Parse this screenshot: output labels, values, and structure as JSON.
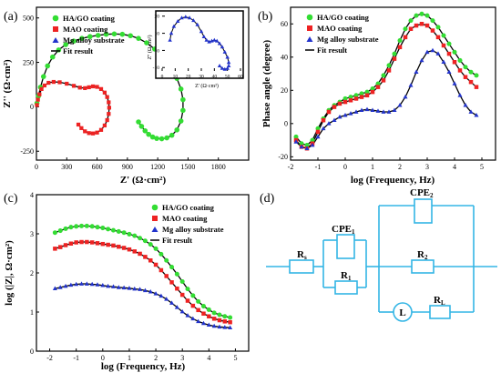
{
  "colors": {
    "hago": "#33dd33",
    "mao": "#ee2222",
    "mg": "#2233cc",
    "fit": "#000000",
    "circuit": "#33b5e5"
  },
  "legend": {
    "hago": "HA/GO coating",
    "mao": "MAO coating",
    "mg": "Mg alloy substrate",
    "fit": "Fit result"
  },
  "chart_data": [
    {
      "panel": "(a)",
      "type": "scatter",
      "xlabel": "Z' (Ω·cm²)",
      "ylabel": "Z'' (Ω·cm²)",
      "xlim": [
        0,
        2100
      ],
      "ylim": [
        -300,
        560
      ],
      "xticks": [
        0,
        300,
        600,
        900,
        1200,
        1500,
        1800
      ],
      "yticks": [
        -250,
        0,
        250,
        500
      ],
      "legend_position": "top-left",
      "series": [
        {
          "name": "HA/GO coating",
          "x": [
            5,
            20,
            40,
            70,
            110,
            160,
            220,
            290,
            370,
            450,
            530,
            610,
            690,
            770,
            850,
            930,
            1010,
            1090,
            1170,
            1250,
            1330,
            1390,
            1430,
            1450,
            1450,
            1430,
            1390,
            1340,
            1290,
            1240,
            1190,
            1150,
            1110,
            1075,
            1040,
            1010
          ],
          "y": [
            20,
            60,
            110,
            170,
            230,
            280,
            320,
            350,
            370,
            385,
            395,
            402,
            408,
            410,
            408,
            400,
            385,
            360,
            325,
            280,
            220,
            160,
            100,
            40,
            -20,
            -80,
            -130,
            -160,
            -175,
            -180,
            -178,
            -170,
            -155,
            -135,
            -110,
            -85
          ]
        },
        {
          "name": "MAO coating",
          "x": [
            5,
            15,
            30,
            50,
            80,
            120,
            170,
            230,
            300,
            370,
            430,
            480,
            520,
            560,
            600,
            640,
            675,
            700,
            715,
            720,
            715,
            700,
            675,
            640,
            600,
            560,
            520,
            480,
            445,
            415
          ],
          "y": [
            10,
            40,
            70,
            100,
            120,
            135,
            140,
            138,
            130,
            118,
            108,
            105,
            110,
            115,
            112,
            100,
            80,
            55,
            25,
            -5,
            -40,
            -75,
            -105,
            -130,
            -145,
            -150,
            -148,
            -138,
            -120,
            -100
          ]
        },
        {
          "name": "Fit result",
          "inset_note": "Mg alloy substrate shown in inset"
        }
      ],
      "inset": {
        "xlabel": "Z' (Ω·cm²)",
        "ylabel": "Z'' (Ω·cm²)",
        "xlim": [
          0,
          60
        ],
        "ylim": [
          -12,
          22
        ],
        "xticks": [
          0,
          10,
          20,
          30,
          40,
          50,
          60
        ],
        "yticks": [
          -10,
          0,
          10,
          20
        ],
        "series": [
          {
            "name": "Mg alloy substrate",
            "x": [
              6,
              7,
              9,
              12,
              15,
              18,
              21,
              24,
              27,
              30,
              32,
              34,
              36,
              38,
              40,
              42,
              44,
              46,
              48,
              50,
              51,
              51,
              50,
              48,
              46,
              44
            ],
            "y": [
              6,
              10,
              14,
              17,
              19,
              19.5,
              19,
              17.5,
              15,
              11,
              8,
              6,
              5,
              5.5,
              6,
              5.5,
              4,
              2,
              -1,
              -4,
              -7,
              -9,
              -10.5,
              -11,
              -10.5,
              -9
            ]
          }
        ]
      }
    },
    {
      "panel": "(b)",
      "type": "scatter",
      "xlabel": "log (Frequency, Hz)",
      "ylabel": "Phase angle (degree)",
      "xlim": [
        -2,
        5.5
      ],
      "ylim": [
        -22,
        70
      ],
      "xticks": [
        -2,
        -1,
        0,
        1,
        2,
        3,
        4,
        5
      ],
      "yticks": [
        -20,
        0,
        20,
        40,
        60
      ],
      "legend_position": "top-left",
      "x": [
        -1.8,
        -1.6,
        -1.4,
        -1.2,
        -1.0,
        -0.8,
        -0.6,
        -0.4,
        -0.2,
        0.0,
        0.2,
        0.4,
        0.6,
        0.8,
        1.0,
        1.2,
        1.4,
        1.6,
        1.8,
        2.0,
        2.2,
        2.4,
        2.6,
        2.8,
        3.0,
        3.2,
        3.4,
        3.6,
        3.8,
        4.0,
        4.2,
        4.4,
        4.6,
        4.8
      ],
      "series": [
        {
          "name": "HA/GO coating",
          "y": [
            -8,
            -12,
            -13,
            -10,
            -3,
            3,
            8,
            11,
            13,
            15,
            16,
            17,
            18,
            19,
            21,
            24,
            29,
            35,
            42,
            50,
            57,
            62,
            65,
            66,
            65,
            62,
            58,
            53,
            48,
            43,
            38,
            34,
            31,
            29
          ]
        },
        {
          "name": "MAO coating",
          "y": [
            -10,
            -14,
            -15,
            -12,
            -5,
            2,
            7,
            10,
            12,
            13,
            14,
            15,
            16,
            17,
            19,
            22,
            26,
            32,
            39,
            46,
            52,
            57,
            59,
            60,
            59,
            56,
            52,
            47,
            42,
            37,
            32,
            28,
            25,
            22
          ]
        },
        {
          "name": "Mg alloy substrate",
          "y": [
            -11,
            -14,
            -15,
            -13,
            -8,
            -3,
            0,
            2,
            4,
            5,
            6,
            7,
            8,
            8.5,
            8,
            7.5,
            7,
            7,
            8,
            11,
            16,
            23,
            31,
            38,
            43,
            44,
            42,
            37,
            31,
            24,
            17,
            11,
            7,
            5
          ]
        }
      ]
    },
    {
      "panel": "(c)",
      "type": "scatter",
      "xlabel": "log (Frequency, Hz)",
      "ylabel": "log (|Z|, Ω·cm²)",
      "xlim": [
        -2.5,
        5.5
      ],
      "ylim": [
        0,
        4
      ],
      "xticks": [
        -2,
        -1,
        0,
        1,
        2,
        3,
        4,
        5
      ],
      "yticks": [
        0,
        1,
        2,
        3,
        4
      ],
      "legend_position": "top-right",
      "x": [
        -1.8,
        -1.6,
        -1.4,
        -1.2,
        -1.0,
        -0.8,
        -0.6,
        -0.4,
        -0.2,
        0.0,
        0.2,
        0.4,
        0.6,
        0.8,
        1.0,
        1.2,
        1.4,
        1.6,
        1.8,
        2.0,
        2.2,
        2.4,
        2.6,
        2.8,
        3.0,
        3.2,
        3.4,
        3.6,
        3.8,
        4.0,
        4.2,
        4.4,
        4.6,
        4.8
      ],
      "series": [
        {
          "name": "HA/GO coating",
          "y": [
            3.03,
            3.08,
            3.13,
            3.17,
            3.19,
            3.2,
            3.2,
            3.19,
            3.17,
            3.15,
            3.12,
            3.09,
            3.06,
            3.03,
            2.99,
            2.95,
            2.89,
            2.82,
            2.73,
            2.62,
            2.48,
            2.32,
            2.15,
            1.97,
            1.78,
            1.59,
            1.42,
            1.27,
            1.15,
            1.06,
            0.98,
            0.93,
            0.89,
            0.86
          ]
        },
        {
          "name": "MAO coating",
          "y": [
            2.62,
            2.66,
            2.71,
            2.75,
            2.78,
            2.79,
            2.79,
            2.78,
            2.76,
            2.74,
            2.72,
            2.7,
            2.67,
            2.64,
            2.6,
            2.55,
            2.49,
            2.41,
            2.32,
            2.21,
            2.07,
            1.92,
            1.76,
            1.6,
            1.44,
            1.29,
            1.16,
            1.05,
            0.96,
            0.89,
            0.83,
            0.79,
            0.76,
            0.74
          ]
        },
        {
          "name": "Mg alloy substrate",
          "y": [
            1.6,
            1.63,
            1.66,
            1.69,
            1.71,
            1.72,
            1.72,
            1.71,
            1.7,
            1.68,
            1.66,
            1.65,
            1.63,
            1.62,
            1.61,
            1.59,
            1.58,
            1.55,
            1.52,
            1.47,
            1.41,
            1.33,
            1.23,
            1.12,
            1.01,
            0.91,
            0.83,
            0.76,
            0.71,
            0.67,
            0.64,
            0.62,
            0.61,
            0.6
          ]
        }
      ]
    }
  ],
  "panels": {
    "a": {
      "label": "(a)"
    },
    "b": {
      "label": "(b)"
    },
    "c": {
      "label": "(c)"
    },
    "d": {
      "label": "(d)"
    }
  },
  "circuit": {
    "Rs": {
      "main": "R",
      "sub": "s"
    },
    "CPE1": {
      "main": "CPE",
      "sub": "1"
    },
    "R1": {
      "main": "R",
      "sub": "1"
    },
    "CPE2": {
      "main": "CPE",
      "sub": "2"
    },
    "R2": {
      "main": "R",
      "sub": "2"
    },
    "L": {
      "main": "L",
      "sub": ""
    },
    "RL": {
      "main": "R",
      "sub": "L"
    }
  }
}
